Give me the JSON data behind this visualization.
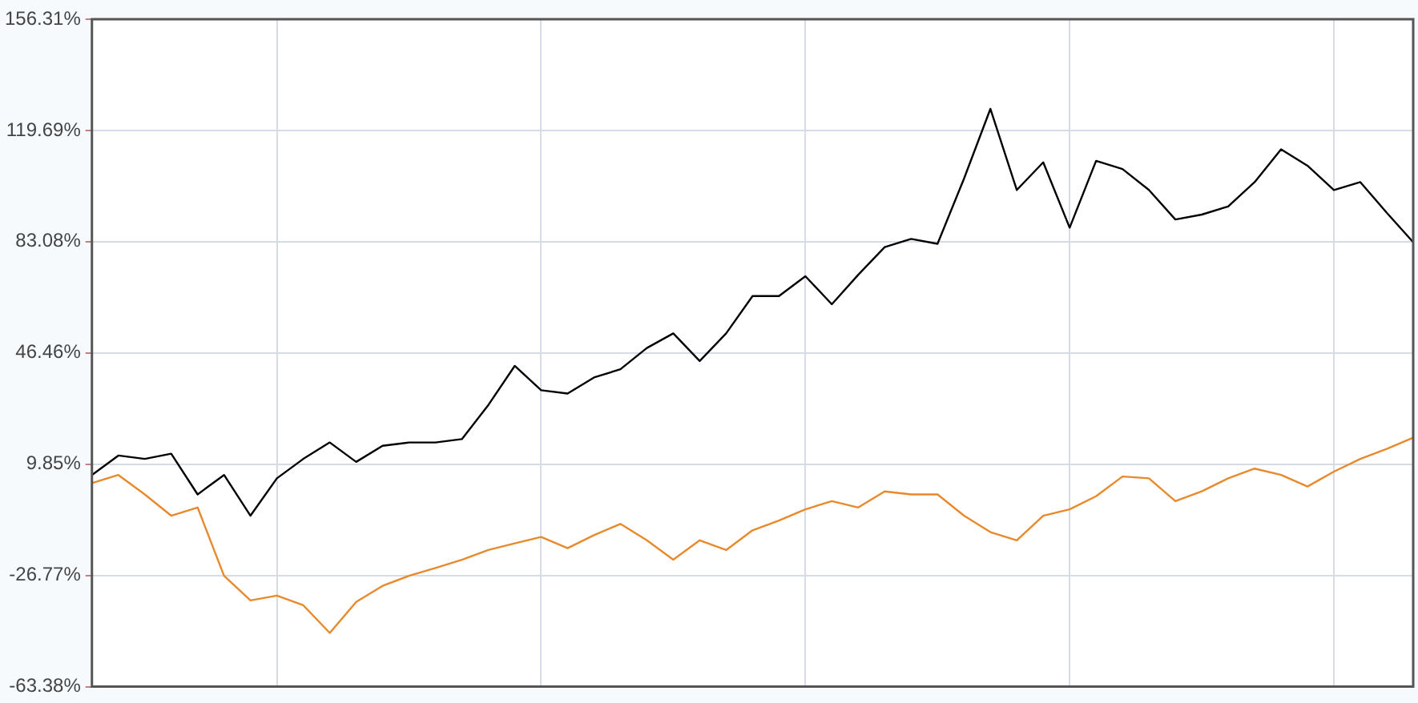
{
  "chart_data": {
    "type": "line",
    "categories": [
      null,
      null,
      null,
      null,
      null,
      null,
      null,
      null,
      null,
      null,
      null,
      null,
      null,
      null,
      null,
      null,
      null,
      null,
      null,
      null,
      null,
      null,
      null,
      null,
      null,
      null,
      null,
      null,
      null,
      null,
      null,
      null,
      null,
      null,
      null,
      null,
      null,
      null,
      null,
      null,
      null,
      null,
      null,
      null,
      null,
      null,
      null,
      null,
      null,
      null,
      null
    ],
    "series": [
      {
        "color": "#000000",
        "values": [
          6.3,
          12.7,
          11.6,
          13.3,
          -0.1,
          6.3,
          -7.1,
          5.2,
          11.6,
          17.0,
          10.6,
          15.9,
          17.0,
          17.0,
          18.1,
          29.3,
          42.2,
          34.2,
          33.1,
          38.4,
          41.1,
          48.1,
          52.9,
          43.8,
          52.9,
          65.2,
          65.2,
          71.7,
          62.5,
          72.2,
          81.3,
          84.0,
          82.4,
          103.8,
          126.8,
          100.1,
          109.2,
          87.7,
          109.7,
          107.0,
          100.1,
          90.4,
          92.0,
          94.7,
          102.7,
          113.5,
          108.1,
          100.1,
          102.7,
          92.6,
          82.9
        ]
      },
      {
        "color": "#e8892b",
        "values": [
          3.6,
          6.3,
          -0.1,
          -7.1,
          -4.4,
          -26.9,
          -35.0,
          -33.4,
          -36.6,
          -45.7,
          -35.5,
          -30.2,
          -26.9,
          -24.3,
          -21.6,
          -18.4,
          -16.2,
          -14.1,
          -17.8,
          -13.5,
          -9.8,
          -15.2,
          -21.6,
          -15.2,
          -18.4,
          -11.9,
          -8.7,
          -5.0,
          -2.3,
          -4.4,
          0.9,
          -0.1,
          -0.1,
          -7.1,
          -12.5,
          -15.2,
          -7.1,
          -5.0,
          -0.7,
          5.8,
          5.2,
          -2.3,
          0.9,
          5.2,
          8.4,
          6.3,
          2.5,
          7.4,
          11.6,
          14.9,
          18.6
        ]
      }
    ],
    "ylim": [
      -63.38,
      156.31
    ],
    "yticks": [
      {
        "value": -63.38,
        "label": "-63.38%"
      },
      {
        "value": -26.77,
        "label": "-26.77%"
      },
      {
        "value": 9.85,
        "label": "9.85%"
      },
      {
        "value": 46.46,
        "label": "46.46%"
      },
      {
        "value": 83.08,
        "label": "83.08%"
      },
      {
        "value": 119.69,
        "label": "119.69%"
      },
      {
        "value": 156.31,
        "label": "156.31%"
      }
    ],
    "grid": true
  }
}
